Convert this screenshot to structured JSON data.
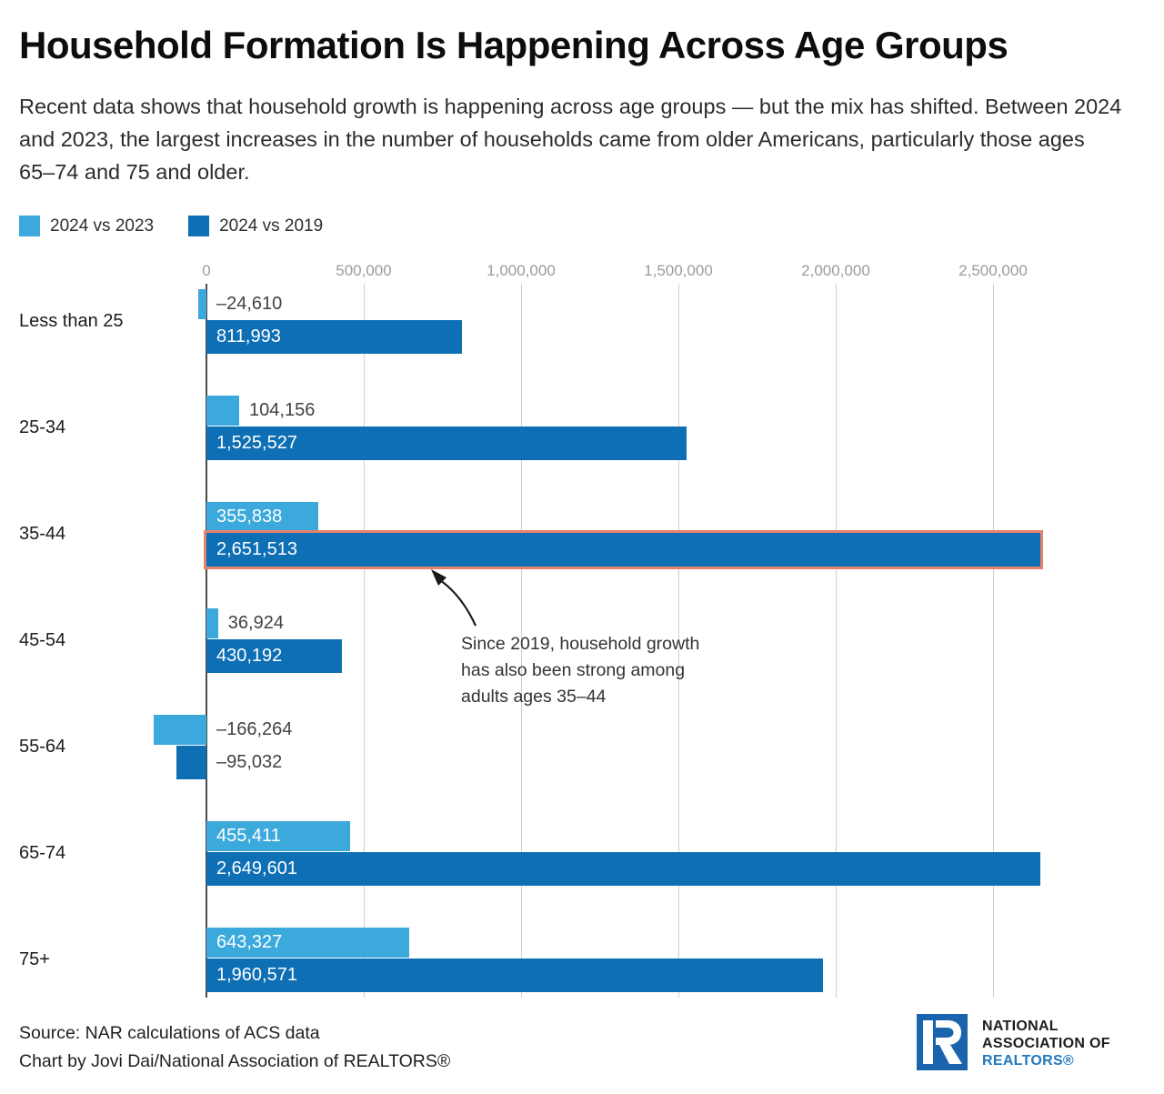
{
  "title": "Household Formation Is Happening Across Age Groups",
  "subtitle": "Recent data shows that household growth is happening across age groups — but the mix has shifted. Between 2024 and 2023, the largest increases in the number of households came from older Americans, particularly those ages 65–74 and 75 and older.",
  "legend": [
    {
      "label": "2024 vs 2023",
      "color": "#3ba9dc"
    },
    {
      "label": "2024 vs 2019",
      "color": "#0e6fb5"
    }
  ],
  "chart_data": {
    "type": "bar",
    "orientation": "horizontal",
    "title": "Household Formation Is Happening Across Age Groups",
    "categories": [
      "Less than 25",
      "25-34",
      "35-44",
      "45-54",
      "55-64",
      "65-74",
      "75+"
    ],
    "series": [
      {
        "name": "2024 vs 2023",
        "color": "#3ba9dc",
        "values": [
          -24610,
          104156,
          355838,
          36924,
          -166264,
          455411,
          643327
        ],
        "labels": [
          "–24,610",
          "104,156",
          "355,838",
          "36,924",
          "–166,264",
          "455,411",
          "643,327"
        ]
      },
      {
        "name": "2024 vs 2019",
        "color": "#0e6fb5",
        "values": [
          811993,
          1525527,
          2651513,
          430192,
          -95032,
          2649601,
          1960571
        ],
        "labels": [
          "811,993",
          "1,525,527",
          "2,651,513",
          "430,192",
          "–95,032",
          "2,649,601",
          "1,960,571"
        ]
      }
    ],
    "highlight": {
      "series": 1,
      "index": 2,
      "border_color": "#e5826e"
    },
    "x_ticks": [
      0,
      500000,
      1000000,
      1500000,
      2000000,
      2500000
    ],
    "x_tick_labels": [
      "0",
      "500,000",
      "1,000,000",
      "1,500,000",
      "2,000,000",
      "2,500,000"
    ],
    "xlim": [
      -180000,
      2700000
    ],
    "grid": true,
    "legend_position": "top-left"
  },
  "annotation": {
    "lines": [
      "Since 2019, household growth",
      "has also been strong among",
      "adults ages 35–44"
    ]
  },
  "footer": {
    "source": "Source: NAR calculations of ACS data",
    "credit": "Chart by Jovi Dai/National Association of REALTORS®"
  },
  "logo": {
    "line1": "NATIONAL",
    "line2": "ASSOCIATION OF",
    "line3": "REALTORS®",
    "box_color": "#1a64ae",
    "realtors_color": "#2279be"
  },
  "colors": {
    "grid_line": "#d0d0d0",
    "zero_line": "#4b4b4b",
    "tick_text": "#9b9b9b",
    "outside_label": "#424242",
    "inside_label": "#ffffff"
  }
}
